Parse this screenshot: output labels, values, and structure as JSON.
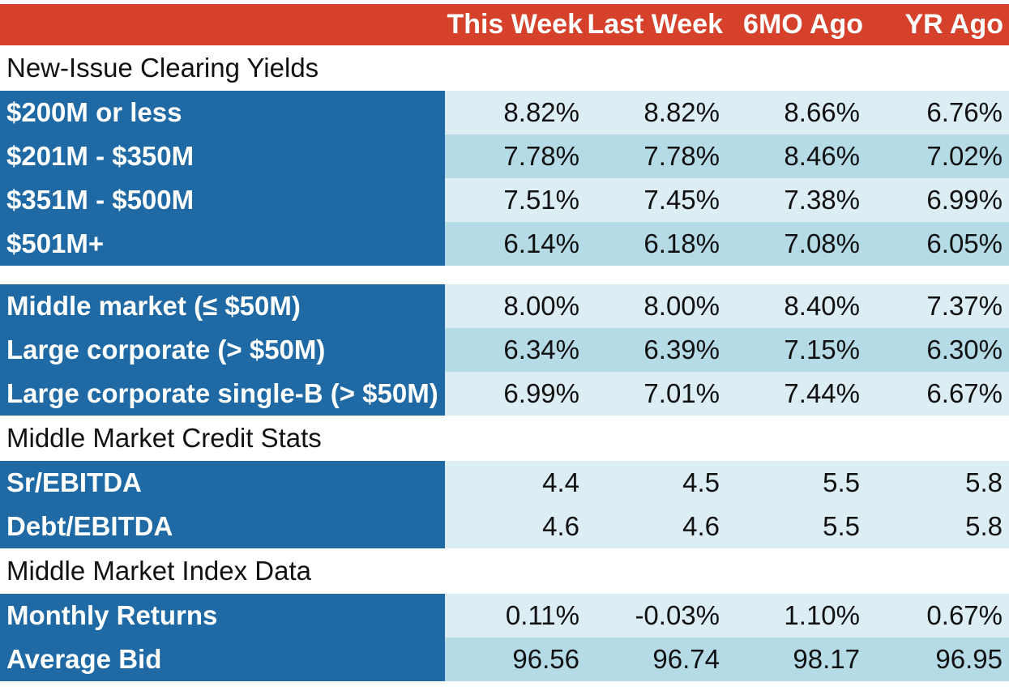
{
  "header": {
    "columns": [
      "This Week",
      "Last Week",
      "6MO Ago",
      "YR Ago"
    ]
  },
  "sections": {
    "new_issue": "New-Issue Clearing Yields",
    "credit_stats": "Middle Market Credit Stats",
    "index_data": "Middle Market Index Data"
  },
  "rows": {
    "r1": {
      "label": "$200M or less",
      "values": [
        "8.82%",
        "8.82%",
        "8.66%",
        "6.76%"
      ]
    },
    "r2": {
      "label": "$201M - $350M",
      "values": [
        "7.78%",
        "7.78%",
        "8.46%",
        "7.02%"
      ]
    },
    "r3": {
      "label": "$351M - $500M",
      "values": [
        "7.51%",
        "7.45%",
        "7.38%",
        "6.99%"
      ]
    },
    "r4": {
      "label": "$501M+",
      "values": [
        "6.14%",
        "6.18%",
        "7.08%",
        "6.05%"
      ]
    },
    "r5": {
      "label": "Middle market (≤ $50M)",
      "values": [
        "8.00%",
        "8.00%",
        "8.40%",
        "7.37%"
      ]
    },
    "r6": {
      "label": "Large corporate (> $50M)",
      "values": [
        "6.34%",
        "6.39%",
        "7.15%",
        "6.30%"
      ]
    },
    "r7": {
      "label": "Large corporate single-B (> $50M)",
      "values": [
        "6.99%",
        "7.01%",
        "7.44%",
        "6.67%"
      ]
    },
    "r8": {
      "label": "Sr/EBITDA",
      "values": [
        "4.4",
        "4.5",
        "5.5",
        "5.8"
      ]
    },
    "r9": {
      "label": "Debt/EBITDA",
      "values": [
        "4.6",
        "4.6",
        "5.5",
        "5.8"
      ]
    },
    "r10": {
      "label": "Monthly Returns",
      "values": [
        "0.11%",
        "-0.03%",
        "1.10%",
        "0.67%"
      ]
    },
    "r11": {
      "label": "Average Bid",
      "values": [
        "96.56",
        "96.74",
        "98.17",
        "96.95"
      ]
    }
  },
  "colors": {
    "header_bg": "#d5412a",
    "label_bg": "#1f6aa5",
    "row_light": "#dcedf4",
    "row_dark": "#b5dbe7"
  }
}
